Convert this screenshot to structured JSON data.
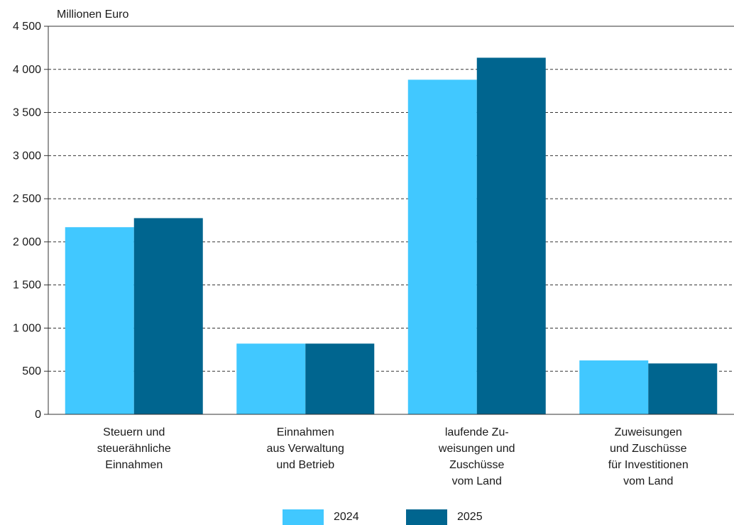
{
  "chart_data": {
    "type": "bar",
    "unit_label": "Millionen Euro",
    "categories": [
      "Steuern und\nsteuerähnliche\nEinnahmen",
      "Einnahmen\naus Verwaltung\nund Betrieb",
      "laufende Zu-\nweisungen und\nZuschüsse\nvom Land",
      "Zuweisungen\nund Zuschüsse\nfür Investitionen\nvom Land"
    ],
    "series": [
      {
        "name": "2024",
        "color": "#41c8ff",
        "values": [
          2170,
          820,
          3880,
          625
        ]
      },
      {
        "name": "2025",
        "color": "#00658f",
        "values": [
          2275,
          820,
          4135,
          590
        ]
      }
    ],
    "ylim": [
      0,
      4500
    ],
    "yticks": [
      0,
      500,
      1000,
      1500,
      2000,
      2500,
      3000,
      3500,
      4000,
      4500
    ],
    "ytick_labels": [
      "0",
      "500",
      "1 000",
      "1 500",
      "2 000",
      "2 500",
      "3 000",
      "3 500",
      "4 000",
      "4 500"
    ],
    "grid": true,
    "legend": "bottom-center"
  }
}
